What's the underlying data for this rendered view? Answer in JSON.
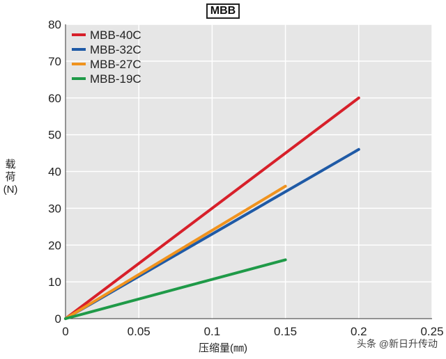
{
  "chart_data": {
    "type": "line",
    "title": "MBB",
    "xlabel": "压缩量(㎜)",
    "ylabel_lines": [
      "载",
      "荷",
      "(N)"
    ],
    "xlim": [
      0,
      0.25
    ],
    "ylim": [
      0,
      80
    ],
    "x_ticks": [
      0,
      0.05,
      0.1,
      0.15,
      0.2,
      0.25
    ],
    "x_tick_labels": [
      "0",
      "0.05",
      "0.1",
      "0.15",
      "0.2",
      "0.25"
    ],
    "y_ticks": [
      0,
      10,
      20,
      30,
      40,
      50,
      60,
      70,
      80
    ],
    "y_tick_labels": [
      "0",
      "10",
      "20",
      "30",
      "40",
      "50",
      "60",
      "70",
      "80"
    ],
    "grid": true,
    "legend_position": "top-left",
    "series": [
      {
        "name": "MBB-40C",
        "color": "#d7202a",
        "x": [
          0,
          0.2
        ],
        "y": [
          0,
          60
        ]
      },
      {
        "name": "MBB-32C",
        "color": "#1f5aa6",
        "x": [
          0,
          0.2
        ],
        "y": [
          0,
          46
        ]
      },
      {
        "name": "MBB-27C",
        "color": "#f0931e",
        "x": [
          0,
          0.15
        ],
        "y": [
          0,
          36
        ]
      },
      {
        "name": "MBB-19C",
        "color": "#1f9a48",
        "x": [
          0,
          0.15
        ],
        "y": [
          0,
          16
        ]
      }
    ]
  },
  "watermark": "头条 @新日升传动"
}
